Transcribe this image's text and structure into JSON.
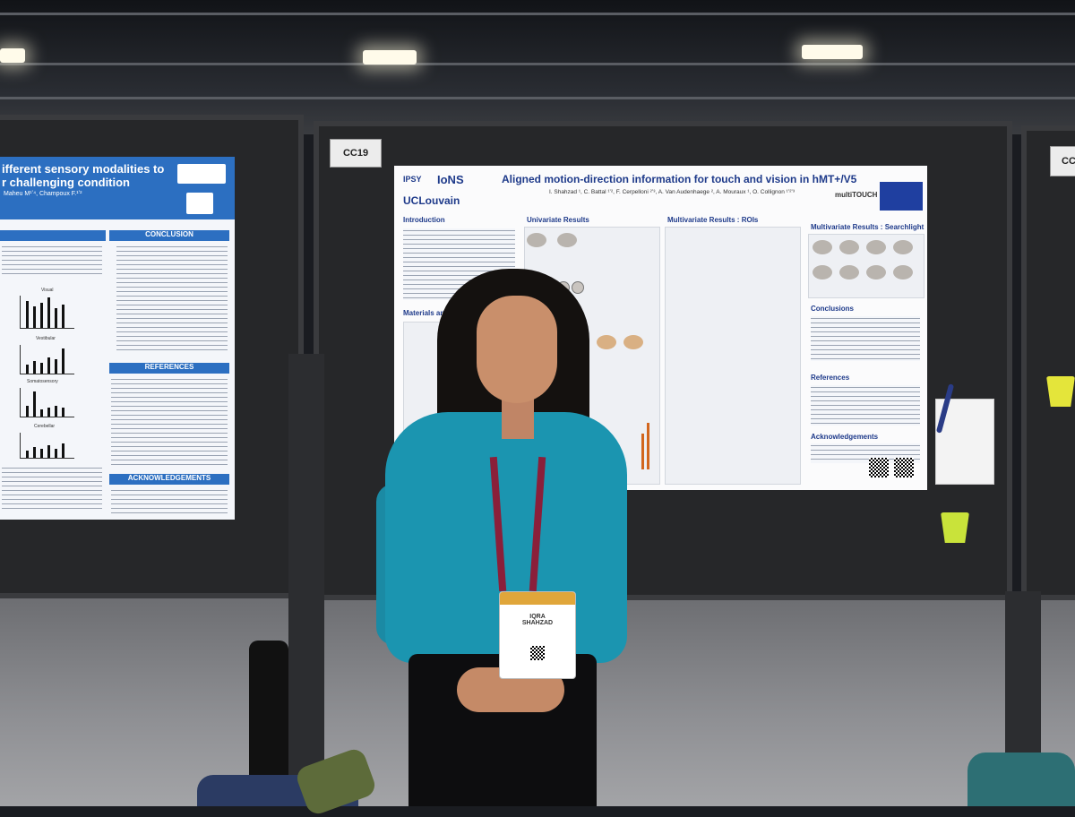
{
  "scene": {
    "booth_labels": [
      "CC19",
      "CC"
    ],
    "badge_name_line1": "IQRA",
    "badge_name_line2": "SHAHZAD"
  },
  "poster_left": {
    "title_line1": "ifferent sensory modalities to",
    "title_line2": "r challenging condition",
    "authors": "Maheu M¹ʼ⁴, Champoux F.¹ʼ²",
    "sections": [
      "CONCLUSION",
      "REFERENCES",
      "ACKNOWLEDGEMENTS"
    ],
    "chart_labels": [
      "Visual",
      "Vestibular",
      "Somatosensory",
      "Cerebellar"
    ]
  },
  "poster_main": {
    "title": "Aligned motion-direction information for touch and vision in hMT+/V5",
    "authors": "I. Shahzad ¹, C. Battal ¹ʼ², F. Cerpelloni ²ʼ³, A. Van Audenhaege ², A. Mouraux ¹, O. Collignon ¹ʼ²ʼ³",
    "logos": [
      "IPSY",
      "IoNS",
      "UCLouvain",
      "multiTOUCH"
    ],
    "sections": [
      "Introduction",
      "Univariate Results",
      "Multivariate Results : ROIs",
      "Multivariate Results : Searchlight",
      "Materials and Method",
      "Conclusions",
      "References",
      "Acknowledgements"
    ]
  },
  "colors": {
    "sweater": "#1b95b0",
    "poster_blue": "#2c6fc1",
    "title_blue": "#1e3a8a"
  }
}
